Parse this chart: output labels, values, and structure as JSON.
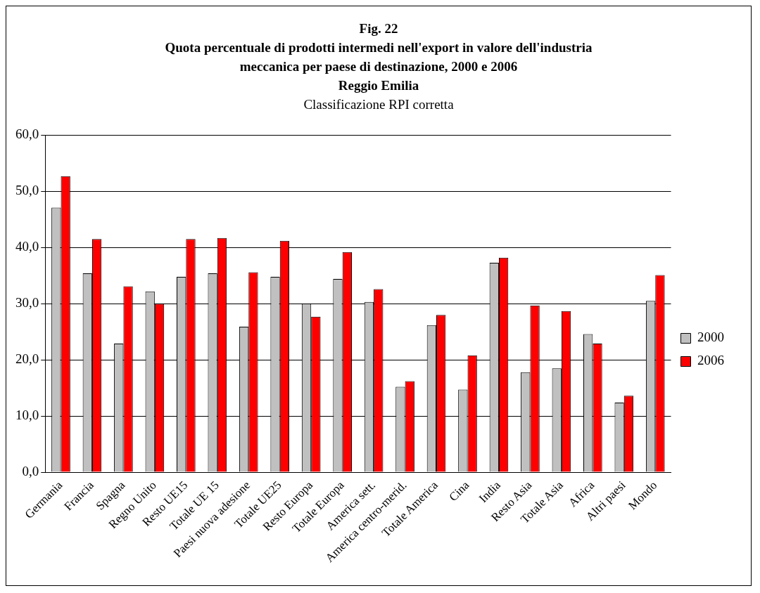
{
  "chart_data": {
    "type": "bar",
    "title": "Fig. 22\nQuota percentuale di prodotti intermedi nell'export in valore dell'industria\nmeccanica per paese di destinazione, 2000 e 2006\nReggio Emilia",
    "subtitle": "Classificazione RPI corretta",
    "categories": [
      "Germania",
      "Francia",
      "Spagna",
      "Regno Unito",
      "Resto UE15",
      "Totale UE 15",
      "Paesi nuova adesione",
      "Totale UE25",
      "Resto Europa",
      "Totale Europa",
      "America sett.",
      "America centro-merid.",
      "Totale America",
      "Cina",
      "India",
      "Resto Asia",
      "Totale Asia",
      "Africa",
      "Altri paesi",
      "Mondo"
    ],
    "series": [
      {
        "name": "2000",
        "color": "#c0c0c0",
        "values": [
          47.1,
          35.4,
          22.9,
          32.2,
          34.8,
          35.4,
          25.9,
          34.8,
          30.0,
          34.4,
          30.3,
          15.2,
          26.2,
          14.7,
          37.3,
          17.8,
          18.5,
          24.6,
          12.4,
          30.5
        ]
      },
      {
        "name": "2006",
        "color": "#ff0000",
        "values": [
          52.7,
          41.5,
          33.1,
          30.0,
          41.5,
          41.7,
          35.6,
          41.2,
          27.7,
          39.2,
          32.6,
          16.2,
          28.0,
          20.8,
          38.2,
          29.7,
          28.7,
          22.9,
          13.6,
          35.1
        ]
      }
    ],
    "ylim": [
      0,
      60
    ],
    "yticks": [
      {
        "value": 0,
        "label": "0,0"
      },
      {
        "value": 10,
        "label": "10,0"
      },
      {
        "value": 20,
        "label": "20,0"
      },
      {
        "value": 30,
        "label": "30,0"
      },
      {
        "value": 40,
        "label": "40,0"
      },
      {
        "value": 50,
        "label": "50,0"
      },
      {
        "value": 60,
        "label": "60,0"
      }
    ],
    "grid": "y",
    "legend": "right"
  }
}
